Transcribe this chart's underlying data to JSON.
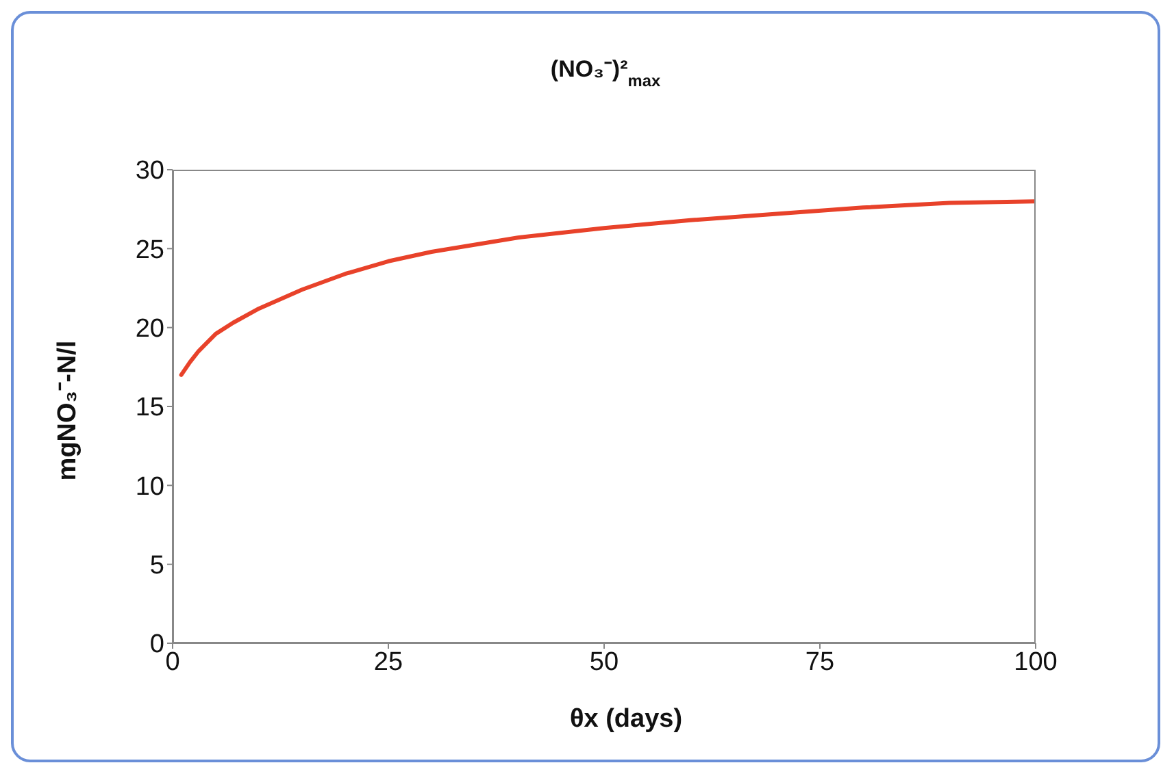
{
  "chart_data": {
    "type": "line",
    "title": "(NO₃⁻)²$_{max}$",
    "xlabel": "θx (days)",
    "ylabel": "mgNO₃⁻-N/l",
    "x": [
      1,
      2,
      3,
      5,
      7,
      10,
      15,
      20,
      25,
      30,
      40,
      50,
      60,
      70,
      80,
      90,
      100
    ],
    "series": [
      {
        "color": "#e8422a",
        "values": [
          17,
          17.8,
          18.5,
          19.6,
          20.3,
          21.2,
          22.4,
          23.4,
          24.2,
          24.8,
          25.7,
          26.3,
          26.8,
          27.2,
          27.6,
          27.9,
          28.0
        ]
      }
    ],
    "xlim": [
      0,
      100
    ],
    "xticks": [
      0,
      25,
      50,
      75,
      100
    ],
    "ylim": [
      0,
      30
    ],
    "yticks": [
      0,
      5,
      10,
      15,
      20,
      25,
      30
    ],
    "grid": false,
    "legend": false,
    "marker": "none",
    "line_style": "solid"
  }
}
